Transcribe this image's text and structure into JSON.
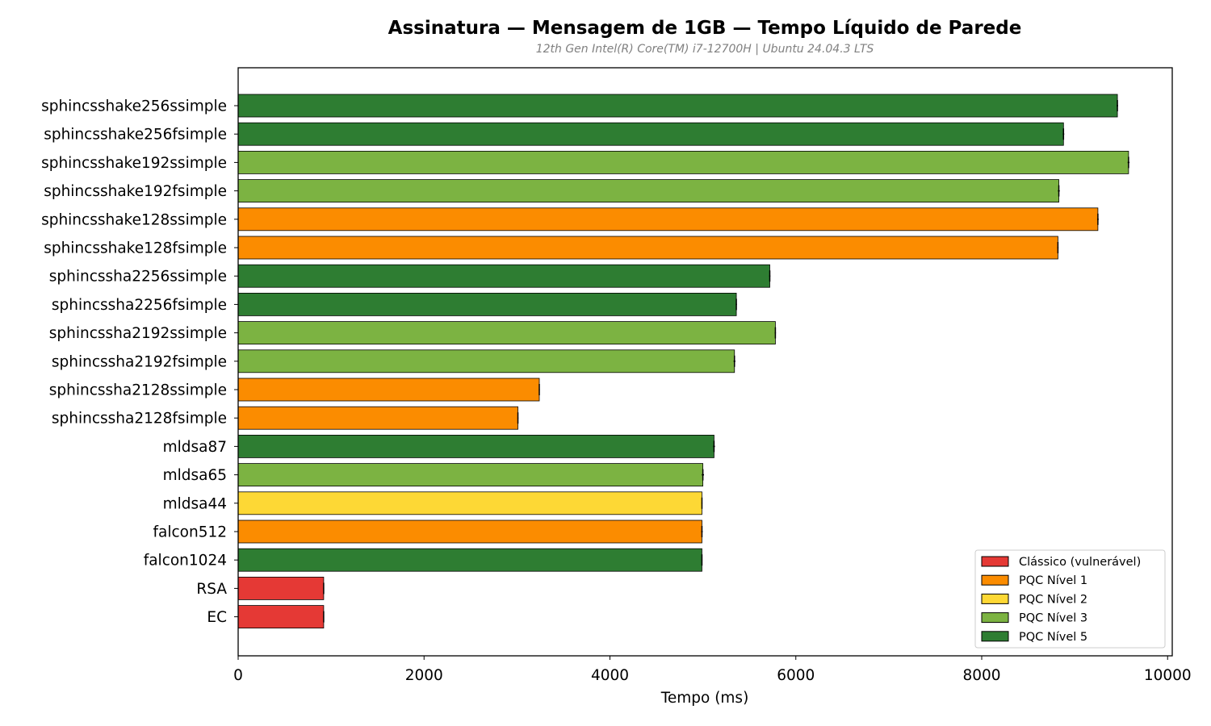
{
  "chart_data": {
    "type": "bar",
    "orientation": "horizontal",
    "title": "Assinatura — Mensagem de 1GB — Tempo Líquido de Parede",
    "subtitle": "12th Gen Intel(R) Core(TM) i7-12700H | Ubuntu 24.04.3 LTS",
    "xlabel": "Tempo (ms)",
    "ylabel": "",
    "xlim": [
      0,
      10050
    ],
    "xticks": [
      0,
      2000,
      4000,
      6000,
      8000,
      10000
    ],
    "xtick_labels": [
      "0",
      "2000",
      "4000",
      "6000",
      "8000",
      "10000"
    ],
    "grid": false,
    "legend_position": "bottom-right",
    "categories": [
      "sphincsshake256ssimple",
      "sphincsshake256fsimple",
      "sphincsshake192ssimple",
      "sphincsshake192fsimple",
      "sphincsshake128ssimple",
      "sphincsshake128fsimple",
      "sphincssha2256ssimple",
      "sphincssha2256fsimple",
      "sphincssha2192ssimple",
      "sphincssha2192fsimple",
      "sphincssha2128ssimple",
      "sphincssha2128fsimple",
      "mldsa87",
      "mldsa65",
      "mldsa44",
      "falcon512",
      "falcon1024",
      "RSA",
      "EC"
    ],
    "values": [
      9460,
      8880,
      9580,
      8830,
      9250,
      8820,
      5720,
      5360,
      5780,
      5340,
      3240,
      3010,
      5120,
      5000,
      4990,
      4990,
      4990,
      920,
      920
    ],
    "errors": [
      8,
      8,
      10,
      10,
      8,
      6,
      6,
      6,
      6,
      10,
      5,
      5,
      10,
      12,
      5,
      8,
      5,
      5,
      5
    ],
    "groups": [
      "PQC Nível 5",
      "PQC Nível 5",
      "PQC Nível 3",
      "PQC Nível 3",
      "PQC Nível 1",
      "PQC Nível 1",
      "PQC Nível 5",
      "PQC Nível 5",
      "PQC Nível 3",
      "PQC Nível 3",
      "PQC Nível 1",
      "PQC Nível 1",
      "PQC Nível 5",
      "PQC Nível 3",
      "PQC Nível 2",
      "PQC Nível 1",
      "PQC Nível 5",
      "Clássico (vulnerável)",
      "Clássico (vulnerável)"
    ],
    "legend": [
      {
        "label": "Clássico (vulnerável)",
        "color": "#e53935"
      },
      {
        "label": "PQC Nível 1",
        "color": "#fb8c00"
      },
      {
        "label": "PQC Nível 2",
        "color": "#fdd835"
      },
      {
        "label": "PQC Nível 3",
        "color": "#7cb342"
      },
      {
        "label": "PQC Nível 5",
        "color": "#2e7d32"
      }
    ]
  }
}
